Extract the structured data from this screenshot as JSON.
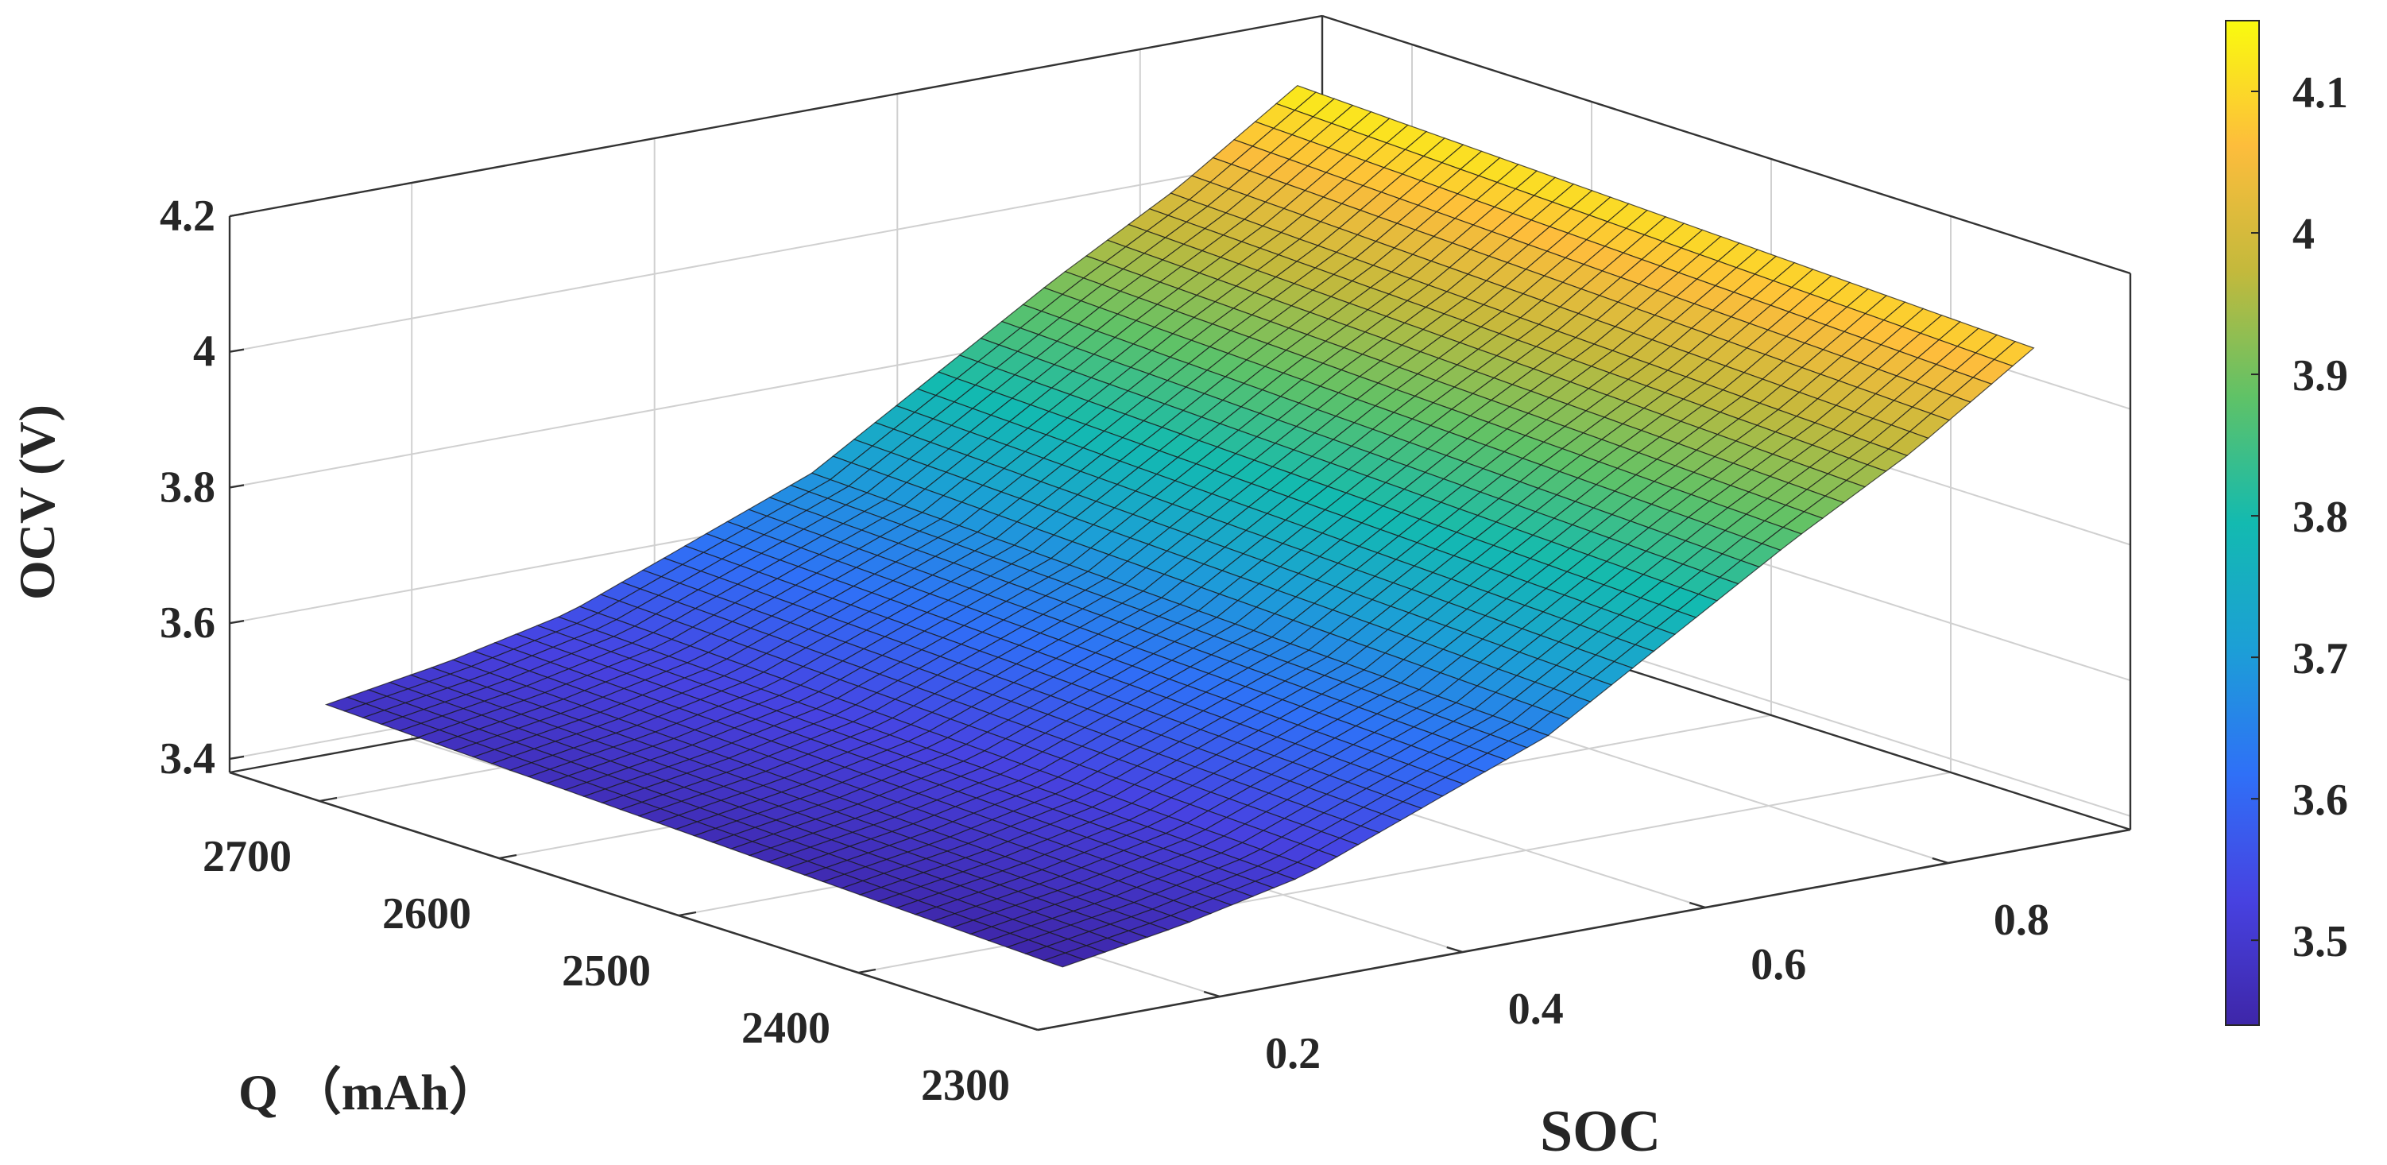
{
  "chart_data": {
    "type": "surface3d",
    "title": "",
    "xlabel": "SOC",
    "ylabel": "Q （mAh）",
    "zlabel": "OCV (V)",
    "xlim": [
      0.05,
      0.95
    ],
    "ylim": [
      2300,
      2750
    ],
    "zlim": [
      3.38,
      4.2
    ],
    "x_ticks": [
      "0.2",
      "0.4",
      "0.6",
      "0.8"
    ],
    "y_ticks": [
      "2300",
      "2400",
      "2500",
      "2600",
      "2700"
    ],
    "z_ticks": [
      "3.4",
      "3.6",
      "3.8",
      "4",
      "4.2"
    ],
    "colorbar": {
      "range": [
        3.44,
        4.15
      ],
      "ticks": [
        "3.5",
        "3.6",
        "3.7",
        "3.8",
        "3.9",
        "4",
        "4.1"
      ],
      "colormap": "parula"
    },
    "surface": {
      "soc_range": [
        0.1,
        0.9
      ],
      "q_range": [
        2320,
        2730
      ],
      "ocv_profile": [
        {
          "soc": 0.1,
          "ocv": 3.46
        },
        {
          "soc": 0.2,
          "ocv": 3.49
        },
        {
          "soc": 0.3,
          "ocv": 3.53
        },
        {
          "soc": 0.4,
          "ocv": 3.6
        },
        {
          "soc": 0.5,
          "ocv": 3.67
        },
        {
          "soc": 0.6,
          "ocv": 3.78
        },
        {
          "soc": 0.7,
          "ocv": 3.89
        },
        {
          "soc": 0.8,
          "ocv": 3.99
        },
        {
          "soc": 0.9,
          "ocv": 4.11
        }
      ],
      "q_effect_v_per_mah": 0.0001
    }
  }
}
